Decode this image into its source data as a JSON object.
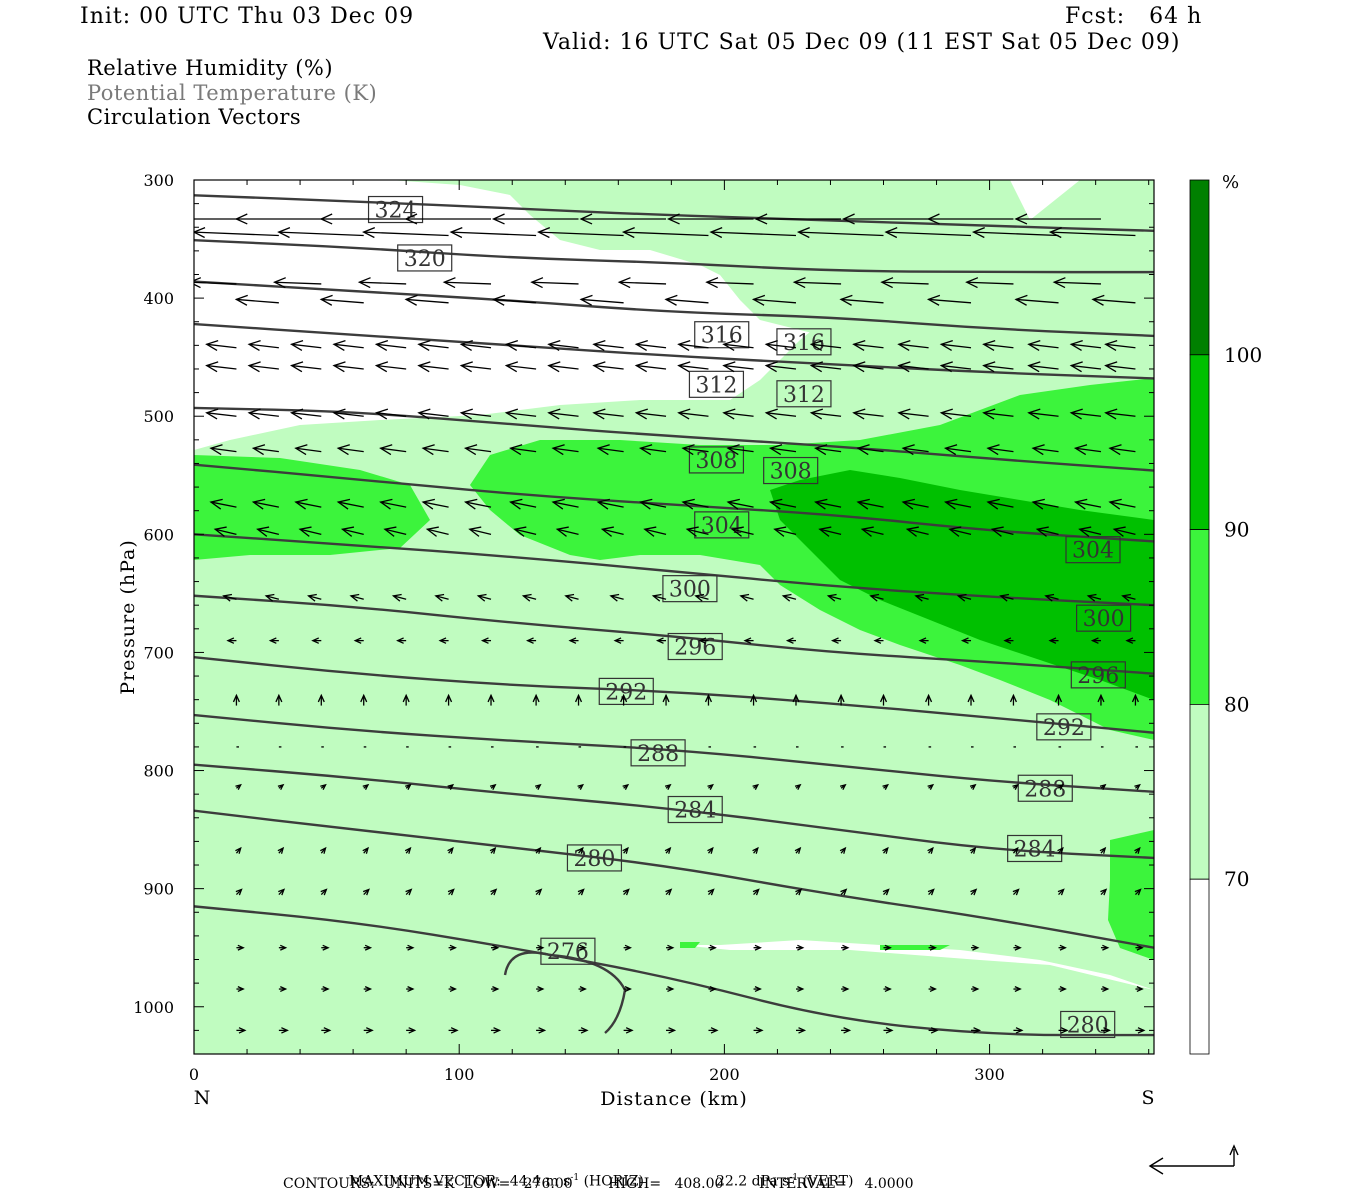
{
  "header": {
    "init": "Init: 00 UTC Thu 03 Dec 09",
    "fcst": "Fcst:   64 h",
    "valid": "Valid: 16 UTC Sat 05 Dec 09 (11 EST Sat 05 Dec 09)"
  },
  "titles": [
    "Relative Humidity (%)",
    "Potential Temperature (K)",
    "Circulation Vectors"
  ],
  "footer": {
    "max_vector_label": "MAXIMUM VECTOR:",
    "horiz": "44.4 m s",
    "horiz_tag": " (HORIZ)",
    "vert": "22.2 dPa s",
    "vert_tag": " (VERT)",
    "contours_line": "CONTOURS:  UNITS=K  LOW=   276.00        HIGH=   408.00        INTERVAL=    4.0000"
  },
  "colors": {
    "rh70": "#c0fcc0",
    "rh80": "#3cf43c",
    "rh90": "#00c000",
    "rh100": "#008000",
    "contour": "#3c3c3c"
  },
  "chart_data": {
    "type": "contour",
    "x_axis": {
      "label": "Distance (km)",
      "range": [
        0,
        362
      ],
      "ticks": [
        0,
        100,
        200,
        300
      ],
      "end_labels": [
        "N",
        "S"
      ]
    },
    "y_axis": {
      "label": "Pressure (hPa)",
      "range": [
        300,
        1040
      ],
      "ticks": [
        300,
        400,
        500,
        600,
        700,
        800,
        900,
        1000
      ]
    },
    "colorbar": {
      "unit": "%",
      "levels": [
        70,
        80,
        90,
        100
      ],
      "colors": [
        "#ffffff",
        "#c0fcc0",
        "#3cf43c",
        "#00c000",
        "#008000"
      ]
    },
    "theta_contours": [
      {
        "label": "324",
        "points": [
          [
            0,
            313
          ],
          [
            60,
            318
          ],
          [
            120,
            324
          ],
          [
            180,
            330
          ],
          [
            240,
            334
          ],
          [
            300,
            339
          ],
          [
            362,
            343
          ]
        ]
      },
      {
        "label": "320",
        "points": [
          [
            0,
            351
          ],
          [
            60,
            357
          ],
          [
            120,
            366
          ],
          [
            180,
            370
          ],
          [
            240,
            377
          ],
          [
            300,
            378
          ],
          [
            362,
            378
          ]
        ]
      },
      {
        "label": "316",
        "points": [
          [
            0,
            386
          ],
          [
            60,
            394
          ],
          [
            120,
            402
          ],
          [
            180,
            412
          ],
          [
            240,
            416
          ],
          [
            300,
            426
          ],
          [
            362,
            432
          ]
        ]
      },
      {
        "label": "312",
        "points": [
          [
            0,
            422
          ],
          [
            60,
            431
          ],
          [
            120,
            440
          ],
          [
            180,
            449
          ],
          [
            240,
            456
          ],
          [
            300,
            463
          ],
          [
            362,
            468
          ]
        ]
      },
      {
        "label": "308",
        "points": [
          [
            0,
            493
          ],
          [
            60,
            496
          ],
          [
            120,
            507
          ],
          [
            180,
            517
          ],
          [
            240,
            525
          ],
          [
            300,
            536
          ],
          [
            362,
            546
          ]
        ]
      },
      {
        "label": "304",
        "points": [
          [
            0,
            541
          ],
          [
            60,
            553
          ],
          [
            120,
            566
          ],
          [
            180,
            575
          ],
          [
            240,
            583
          ],
          [
            300,
            597
          ],
          [
            362,
            606
          ]
        ]
      },
      {
        "label": "300",
        "points": [
          [
            0,
            600
          ],
          [
            60,
            609
          ],
          [
            120,
            619
          ],
          [
            180,
            631
          ],
          [
            240,
            644
          ],
          [
            300,
            653
          ],
          [
            362,
            660
          ]
        ]
      },
      {
        "label": "296",
        "points": [
          [
            0,
            652
          ],
          [
            60,
            661
          ],
          [
            120,
            675
          ],
          [
            180,
            686
          ],
          [
            240,
            700
          ],
          [
            300,
            708
          ],
          [
            362,
            718
          ]
        ]
      },
      {
        "label": "292",
        "points": [
          [
            0,
            704
          ],
          [
            60,
            718
          ],
          [
            120,
            728
          ],
          [
            180,
            733
          ],
          [
            240,
            743
          ],
          [
            300,
            755
          ],
          [
            362,
            768
          ]
        ]
      },
      {
        "label": "288",
        "points": [
          [
            0,
            753
          ],
          [
            60,
            766
          ],
          [
            120,
            775
          ],
          [
            180,
            782
          ],
          [
            240,
            795
          ],
          [
            300,
            809
          ],
          [
            362,
            818
          ]
        ]
      },
      {
        "label": "284",
        "points": [
          [
            0,
            795
          ],
          [
            60,
            806
          ],
          [
            120,
            820
          ],
          [
            180,
            832
          ],
          [
            240,
            849
          ],
          [
            300,
            867
          ],
          [
            362,
            874
          ]
        ]
      },
      {
        "label": "280",
        "points": [
          [
            0,
            834
          ],
          [
            60,
            850
          ],
          [
            120,
            865
          ],
          [
            180,
            881
          ],
          [
            240,
            905
          ],
          [
            300,
            925
          ],
          [
            362,
            950
          ]
        ]
      },
      {
        "label": "276",
        "points": [
          [
            0,
            915
          ],
          [
            60,
            928
          ],
          [
            120,
            950
          ],
          [
            180,
            975
          ],
          [
            240,
            1010
          ],
          [
            300,
            1024
          ],
          [
            362,
            1024
          ]
        ]
      }
    ],
    "contour_labels": [
      {
        "text": "324",
        "x": 76,
        "p": 325
      },
      {
        "text": "320",
        "x": 87,
        "p": 366
      },
      {
        "text": "316",
        "x": 199,
        "p": 431
      },
      {
        "text": "316",
        "x": 230,
        "p": 437
      },
      {
        "text": "312",
        "x": 197,
        "p": 473
      },
      {
        "text": "312",
        "x": 230,
        "p": 481
      },
      {
        "text": "308",
        "x": 197,
        "p": 537
      },
      {
        "text": "308",
        "x": 225,
        "p": 546
      },
      {
        "text": "304",
        "x": 199,
        "p": 592
      },
      {
        "text": "304",
        "x": 339,
        "p": 613
      },
      {
        "text": "300",
        "x": 187,
        "p": 646
      },
      {
        "text": "300",
        "x": 343,
        "p": 671
      },
      {
        "text": "296",
        "x": 189,
        "p": 695
      },
      {
        "text": "296",
        "x": 341,
        "p": 719
      },
      {
        "text": "292",
        "x": 163,
        "p": 733
      },
      {
        "text": "292",
        "x": 328,
        "p": 763
      },
      {
        "text": "288",
        "x": 175,
        "p": 785
      },
      {
        "text": "288",
        "x": 321,
        "p": 815
      },
      {
        "text": "284",
        "x": 189,
        "p": 833
      },
      {
        "text": "284",
        "x": 317,
        "p": 866
      },
      {
        "text": "280",
        "x": 151,
        "p": 874
      },
      {
        "text": "276",
        "x": 141,
        "p": 953
      },
      {
        "text": "280",
        "x": 337,
        "p": 1015
      }
    ],
    "vectors": {
      "rows": [
        {
          "p": 333,
          "u": -1.0,
          "w": 0.0
        },
        {
          "p": 347,
          "u": -1.0,
          "w": 0.02
        },
        {
          "p": 388,
          "u": -0.55,
          "w": 0.01
        },
        {
          "p": 404,
          "u": -0.5,
          "w": 0.02
        },
        {
          "p": 442,
          "u": -0.35,
          "w": 0.02
        },
        {
          "p": 460,
          "u": -0.35,
          "w": 0.02
        },
        {
          "p": 500,
          "u": -0.35,
          "w": 0.02
        },
        {
          "p": 530,
          "u": -0.3,
          "w": 0.02
        },
        {
          "p": 577,
          "u": -0.3,
          "w": 0.03
        },
        {
          "p": 600,
          "u": -0.25,
          "w": 0.03
        },
        {
          "p": 655,
          "u": -0.15,
          "w": 0.02
        },
        {
          "p": 690,
          "u": -0.1,
          "w": 0.0
        },
        {
          "p": 745,
          "u": 0.0,
          "w": 0.06
        },
        {
          "p": 780,
          "u": 0.03,
          "w": 0.0
        },
        {
          "p": 815,
          "u": 0.05,
          "w": 0.02
        },
        {
          "p": 870,
          "u": 0.05,
          "w": 0.03
        },
        {
          "p": 905,
          "u": 0.06,
          "w": 0.03
        },
        {
          "p": 950,
          "u": 0.08,
          "w": 0.0
        },
        {
          "p": 985,
          "u": 0.08,
          "w": 0.0
        },
        {
          "p": 1020,
          "u": 0.1,
          "w": 0.0
        }
      ],
      "x_positions": [
        16,
        32,
        48,
        64,
        80,
        96,
        112,
        129,
        145,
        162,
        178,
        194,
        211,
        227,
        244,
        260,
        277,
        293,
        309,
        326,
        342,
        355
      ]
    }
  }
}
